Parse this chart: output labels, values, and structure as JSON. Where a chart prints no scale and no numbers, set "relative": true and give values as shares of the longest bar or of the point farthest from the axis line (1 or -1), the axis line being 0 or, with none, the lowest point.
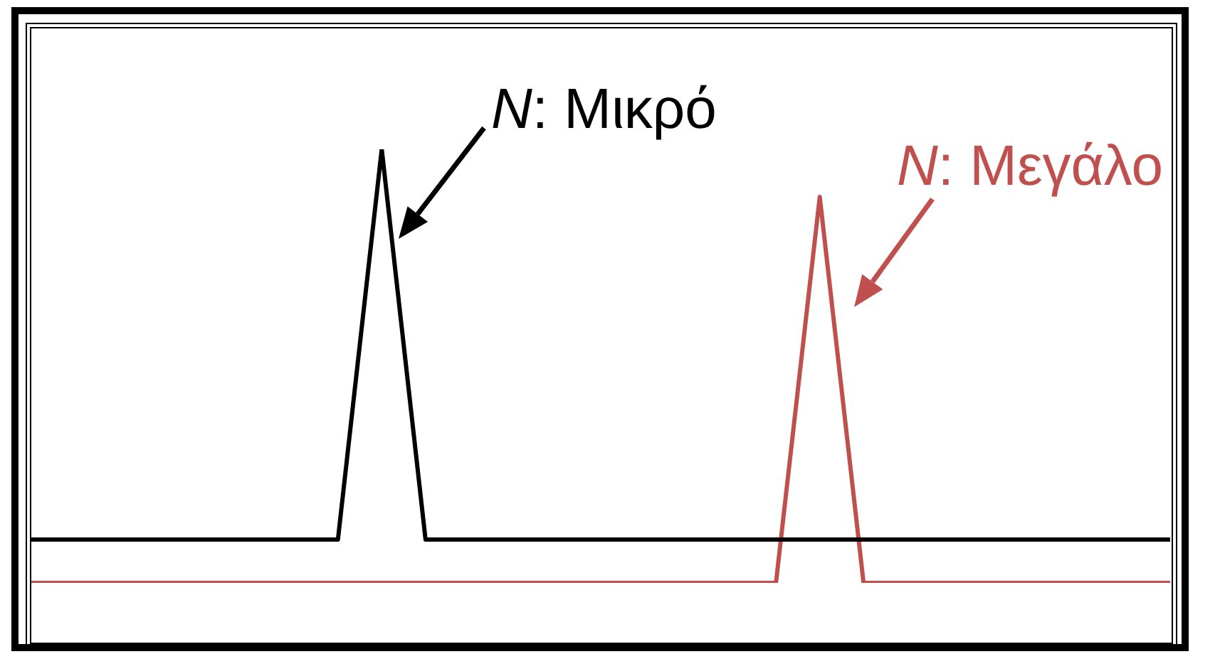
{
  "chart_data": {
    "type": "line",
    "relative": true,
    "categories": [
      null,
      null,
      null,
      null,
      null,
      null,
      null,
      null,
      null,
      null,
      null,
      null,
      null,
      null,
      null,
      null,
      null,
      null,
      null,
      null,
      null,
      null,
      null,
      null,
      null,
      null,
      null
    ],
    "series": [
      {
        "color": "#000000",
        "values": [
          0.1,
          null,
          null,
          null,
          null,
          null,
          null,
          0.1,
          1,
          0.1,
          null,
          null,
          null,
          null,
          null,
          null,
          null,
          null,
          null,
          null,
          null,
          null,
          null,
          null,
          null,
          null,
          0.1
        ]
      },
      {
        "color": "#c0504d",
        "values": [
          0,
          null,
          null,
          null,
          null,
          null,
          null,
          null,
          null,
          null,
          null,
          null,
          null,
          null,
          null,
          null,
          null,
          0,
          0.89,
          0,
          null,
          null,
          null,
          null,
          null,
          null,
          0
        ]
      }
    ],
    "annotations": [
      "N: Μικρό",
      "N: Μεγάλο"
    ],
    "legend": false,
    "marker": "none",
    "line_style": "solid"
  }
}
